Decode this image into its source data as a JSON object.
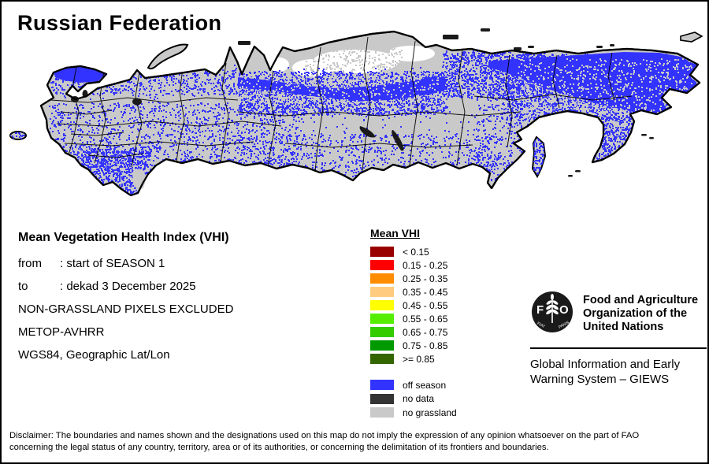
{
  "title": "Russian Federation",
  "info": {
    "heading": "Mean Vegetation Health Index (VHI)",
    "rows": [
      {
        "label": "from",
        "value": ": start of SEASON 1"
      },
      {
        "label": "to",
        "value": ": dekad 3 December 2025"
      },
      {
        "label": "",
        "value": "NON-GRASSLAND PIXELS EXCLUDED"
      },
      {
        "label": "",
        "value": "METOP-AVHRR"
      },
      {
        "label": "",
        "value": "WGS84, Geographic Lat/Lon"
      }
    ]
  },
  "legend": {
    "title": "Mean VHI",
    "classes": [
      {
        "label": "< 0.15",
        "color": "#990000"
      },
      {
        "label": "0.15 - 0.25",
        "color": "#FF0000"
      },
      {
        "label": "0.25 - 0.35",
        "color": "#FF8C00"
      },
      {
        "label": "0.35 - 0.45",
        "color": "#FFCC7F"
      },
      {
        "label": "0.45 - 0.55",
        "color": "#FFFF00"
      },
      {
        "label": "0.55 - 0.65",
        "color": "#55EE00"
      },
      {
        "label": "0.65 - 0.75",
        "color": "#33CC00"
      },
      {
        "label": "0.75 - 0.85",
        "color": "#009900"
      },
      {
        "label": ">= 0.85",
        "color": "#336600"
      }
    ],
    "extra": [
      {
        "label": "off season",
        "color": "#3333FF"
      },
      {
        "label": "no data",
        "color": "#333333"
      },
      {
        "label": "no grassland",
        "color": "#C9C9C9"
      }
    ]
  },
  "map_colors": {
    "land": "#C9C9C9",
    "off_season": "#3333FF",
    "no_data": "#1a1a1a",
    "outline": "#000000",
    "water": "#FFFFFF"
  },
  "branding": {
    "logo_letters": "FAO",
    "logo_motto": "FIAT PANIS",
    "org_lines": [
      "Food and Agriculture",
      "Organization of the",
      "United Nations"
    ],
    "program_lines": [
      "Global Information and Early",
      "Warning System – GIEWS"
    ]
  },
  "disclaimer": {
    "line1": "Disclaimer: The boundaries and names shown and the designations used on this map do not imply the expression of any opinion whatsoever on the part of FAO",
    "line2": "concerning the legal status of any country, territory, area or of its authorities, or concerning the delimitation of its frontiers and boundaries."
  }
}
